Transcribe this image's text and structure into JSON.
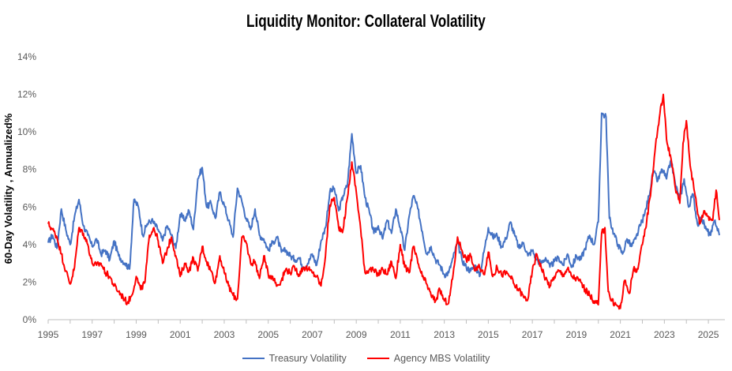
{
  "chart_data": {
    "type": "line",
    "title": "Liquidity Monitor: Collateral Volatility",
    "xlabel": "",
    "ylabel": "60-Day Volatility , Annualized%",
    "xlim": [
      1995,
      2025.75
    ],
    "ylim": [
      0,
      14
    ],
    "y_ticks": [
      "0%",
      "2%",
      "4%",
      "6%",
      "8%",
      "10%",
      "12%",
      "14%"
    ],
    "x_ticks": [
      "1995",
      "1997",
      "1999",
      "2001",
      "2003",
      "2005",
      "2007",
      "2009",
      "2011",
      "2013",
      "2015",
      "2017",
      "2019",
      "2021",
      "2023",
      "2025"
    ],
    "legend_position": "bottom",
    "series": [
      {
        "name": "Treasury Volatility",
        "color": "#4472C4",
        "points": [
          [
            1995.0,
            4.1
          ],
          [
            1995.2,
            4.5
          ],
          [
            1995.4,
            3.8
          ],
          [
            1995.6,
            5.9
          ],
          [
            1995.8,
            4.8
          ],
          [
            1996.0,
            4.0
          ],
          [
            1996.2,
            5.5
          ],
          [
            1996.4,
            6.4
          ],
          [
            1996.6,
            5.0
          ],
          [
            1996.8,
            4.5
          ],
          [
            1997.0,
            3.9
          ],
          [
            1997.2,
            4.3
          ],
          [
            1997.4,
            3.5
          ],
          [
            1997.6,
            3.7
          ],
          [
            1997.8,
            3.2
          ],
          [
            1998.0,
            4.2
          ],
          [
            1998.2,
            3.4
          ],
          [
            1998.5,
            3.0
          ],
          [
            1998.7,
            2.7
          ],
          [
            1998.9,
            6.4
          ],
          [
            1999.1,
            6.0
          ],
          [
            1999.3,
            4.5
          ],
          [
            1999.5,
            5.1
          ],
          [
            1999.7,
            5.3
          ],
          [
            2000.0,
            4.8
          ],
          [
            2000.2,
            4.2
          ],
          [
            2000.4,
            5.0
          ],
          [
            2000.6,
            4.5
          ],
          [
            2000.8,
            3.8
          ],
          [
            2001.0,
            5.6
          ],
          [
            2001.2,
            5.3
          ],
          [
            2001.4,
            5.8
          ],
          [
            2001.6,
            4.8
          ],
          [
            2001.8,
            7.5
          ],
          [
            2002.0,
            8.1
          ],
          [
            2002.2,
            6.0
          ],
          [
            2002.4,
            6.2
          ],
          [
            2002.6,
            5.4
          ],
          [
            2002.8,
            6.8
          ],
          [
            2003.0,
            6.1
          ],
          [
            2003.2,
            5.3
          ],
          [
            2003.4,
            4.4
          ],
          [
            2003.6,
            7.0
          ],
          [
            2003.8,
            6.3
          ],
          [
            2004.0,
            5.4
          ],
          [
            2004.2,
            4.8
          ],
          [
            2004.4,
            5.9
          ],
          [
            2004.6,
            4.5
          ],
          [
            2004.8,
            4.3
          ],
          [
            2005.0,
            3.7
          ],
          [
            2005.2,
            4.1
          ],
          [
            2005.4,
            4.4
          ],
          [
            2005.6,
            3.6
          ],
          [
            2005.8,
            3.7
          ],
          [
            2006.0,
            3.4
          ],
          [
            2006.2,
            3.2
          ],
          [
            2006.4,
            3.3
          ],
          [
            2006.6,
            2.8
          ],
          [
            2006.8,
            3.0
          ],
          [
            2007.0,
            3.5
          ],
          [
            2007.2,
            2.9
          ],
          [
            2007.4,
            4.2
          ],
          [
            2007.6,
            4.9
          ],
          [
            2007.8,
            6.8
          ],
          [
            2008.0,
            7.0
          ],
          [
            2008.2,
            5.8
          ],
          [
            2008.4,
            6.6
          ],
          [
            2008.6,
            7.2
          ],
          [
            2008.8,
            9.9
          ],
          [
            2009.0,
            7.8
          ],
          [
            2009.2,
            8.2
          ],
          [
            2009.4,
            6.5
          ],
          [
            2009.6,
            5.7
          ],
          [
            2009.8,
            4.6
          ],
          [
            2010.0,
            5.0
          ],
          [
            2010.2,
            4.3
          ],
          [
            2010.4,
            5.3
          ],
          [
            2010.6,
            4.6
          ],
          [
            2010.8,
            5.9
          ],
          [
            2011.0,
            4.9
          ],
          [
            2011.2,
            3.7
          ],
          [
            2011.4,
            5.5
          ],
          [
            2011.6,
            6.6
          ],
          [
            2011.8,
            5.9
          ],
          [
            2012.0,
            4.7
          ],
          [
            2012.2,
            3.5
          ],
          [
            2012.4,
            3.9
          ],
          [
            2012.6,
            3.2
          ],
          [
            2012.8,
            2.9
          ],
          [
            2013.0,
            2.4
          ],
          [
            2013.2,
            2.5
          ],
          [
            2013.4,
            3.3
          ],
          [
            2013.6,
            4.1
          ],
          [
            2013.8,
            3.2
          ],
          [
            2014.0,
            2.8
          ],
          [
            2014.2,
            2.6
          ],
          [
            2014.4,
            2.9
          ],
          [
            2014.6,
            2.3
          ],
          [
            2014.8,
            3.6
          ],
          [
            2015.0,
            4.9
          ],
          [
            2015.2,
            4.4
          ],
          [
            2015.4,
            4.5
          ],
          [
            2015.6,
            3.9
          ],
          [
            2015.8,
            4.3
          ],
          [
            2016.0,
            5.2
          ],
          [
            2016.2,
            4.5
          ],
          [
            2016.4,
            3.8
          ],
          [
            2016.6,
            4.1
          ],
          [
            2016.8,
            3.4
          ],
          [
            2017.0,
            3.7
          ],
          [
            2017.2,
            3.2
          ],
          [
            2017.4,
            3.0
          ],
          [
            2017.6,
            3.3
          ],
          [
            2017.8,
            2.8
          ],
          [
            2018.0,
            3.1
          ],
          [
            2018.2,
            3.3
          ],
          [
            2018.4,
            2.9
          ],
          [
            2018.6,
            3.5
          ],
          [
            2018.8,
            2.8
          ],
          [
            2019.0,
            3.4
          ],
          [
            2019.2,
            3.2
          ],
          [
            2019.4,
            3.8
          ],
          [
            2019.6,
            4.5
          ],
          [
            2019.8,
            4.0
          ],
          [
            2020.0,
            5.2
          ],
          [
            2020.15,
            11.0
          ],
          [
            2020.35,
            10.8
          ],
          [
            2020.5,
            5.4
          ],
          [
            2020.7,
            4.6
          ],
          [
            2020.9,
            4.0
          ],
          [
            2021.1,
            3.5
          ],
          [
            2021.3,
            4.3
          ],
          [
            2021.5,
            3.9
          ],
          [
            2021.7,
            4.3
          ],
          [
            2021.9,
            5.0
          ],
          [
            2022.1,
            5.6
          ],
          [
            2022.3,
            6.6
          ],
          [
            2022.5,
            7.9
          ],
          [
            2022.7,
            7.4
          ],
          [
            2022.9,
            8.0
          ],
          [
            2023.1,
            7.5
          ],
          [
            2023.3,
            8.5
          ],
          [
            2023.5,
            7.2
          ],
          [
            2023.7,
            6.4
          ],
          [
            2023.9,
            7.5
          ],
          [
            2024.1,
            6.0
          ],
          [
            2024.3,
            6.7
          ],
          [
            2024.5,
            5.1
          ],
          [
            2024.7,
            5.4
          ],
          [
            2024.9,
            4.8
          ],
          [
            2025.1,
            4.5
          ],
          [
            2025.3,
            5.3
          ],
          [
            2025.5,
            4.5
          ]
        ]
      },
      {
        "name": "Agency MBS Volatility",
        "color": "#FF0000",
        "points": [
          [
            1995.0,
            5.1
          ],
          [
            1995.2,
            4.8
          ],
          [
            1995.4,
            4.4
          ],
          [
            1995.6,
            3.5
          ],
          [
            1995.8,
            2.6
          ],
          [
            1996.0,
            1.9
          ],
          [
            1996.2,
            2.8
          ],
          [
            1996.4,
            4.9
          ],
          [
            1996.6,
            4.6
          ],
          [
            1996.8,
            4.0
          ],
          [
            1997.0,
            3.0
          ],
          [
            1997.2,
            2.9
          ],
          [
            1997.4,
            3.0
          ],
          [
            1997.6,
            2.5
          ],
          [
            1997.8,
            2.3
          ],
          [
            1998.0,
            1.8
          ],
          [
            1998.2,
            1.5
          ],
          [
            1998.4,
            1.2
          ],
          [
            1998.6,
            0.9
          ],
          [
            1998.8,
            1.3
          ],
          [
            1999.0,
            2.3
          ],
          [
            1999.2,
            1.6
          ],
          [
            1999.4,
            2.0
          ],
          [
            1999.6,
            4.5
          ],
          [
            1999.8,
            4.9
          ],
          [
            2000.0,
            4.2
          ],
          [
            2000.2,
            3.0
          ],
          [
            2000.4,
            3.7
          ],
          [
            2000.6,
            4.4
          ],
          [
            2000.8,
            3.4
          ],
          [
            2001.0,
            2.3
          ],
          [
            2001.2,
            3.0
          ],
          [
            2001.4,
            2.6
          ],
          [
            2001.6,
            3.3
          ],
          [
            2001.8,
            2.6
          ],
          [
            2002.0,
            3.9
          ],
          [
            2002.2,
            3.1
          ],
          [
            2002.4,
            2.6
          ],
          [
            2002.6,
            2.0
          ],
          [
            2002.8,
            3.4
          ],
          [
            2003.0,
            2.5
          ],
          [
            2003.2,
            1.8
          ],
          [
            2003.4,
            1.3
          ],
          [
            2003.6,
            1.1
          ],
          [
            2003.8,
            4.4
          ],
          [
            2004.0,
            4.1
          ],
          [
            2004.2,
            3.0
          ],
          [
            2004.4,
            3.1
          ],
          [
            2004.6,
            2.2
          ],
          [
            2004.8,
            3.4
          ],
          [
            2005.0,
            2.4
          ],
          [
            2005.2,
            2.3
          ],
          [
            2005.4,
            1.8
          ],
          [
            2005.6,
            2.1
          ],
          [
            2005.8,
            2.7
          ],
          [
            2006.0,
            2.5
          ],
          [
            2006.2,
            2.8
          ],
          [
            2006.4,
            2.4
          ],
          [
            2006.6,
            2.8
          ],
          [
            2006.8,
            2.7
          ],
          [
            2007.0,
            2.5
          ],
          [
            2007.2,
            2.3
          ],
          [
            2007.4,
            1.8
          ],
          [
            2007.6,
            3.4
          ],
          [
            2007.8,
            6.1
          ],
          [
            2008.0,
            6.5
          ],
          [
            2008.2,
            4.9
          ],
          [
            2008.4,
            4.8
          ],
          [
            2008.6,
            6.5
          ],
          [
            2008.8,
            8.4
          ],
          [
            2009.0,
            6.8
          ],
          [
            2009.2,
            4.8
          ],
          [
            2009.4,
            2.5
          ],
          [
            2009.6,
            2.7
          ],
          [
            2009.8,
            2.6
          ],
          [
            2010.0,
            2.4
          ],
          [
            2010.2,
            2.7
          ],
          [
            2010.4,
            2.4
          ],
          [
            2010.6,
            3.1
          ],
          [
            2010.8,
            2.2
          ],
          [
            2011.0,
            4.0
          ],
          [
            2011.2,
            2.8
          ],
          [
            2011.4,
            2.5
          ],
          [
            2011.6,
            3.9
          ],
          [
            2011.8,
            3.0
          ],
          [
            2012.0,
            2.3
          ],
          [
            2012.2,
            1.9
          ],
          [
            2012.4,
            1.3
          ],
          [
            2012.6,
            1.0
          ],
          [
            2012.8,
            1.6
          ],
          [
            2013.0,
            1.0
          ],
          [
            2013.2,
            0.9
          ],
          [
            2013.4,
            2.4
          ],
          [
            2013.6,
            4.4
          ],
          [
            2013.8,
            3.7
          ],
          [
            2014.0,
            3.2
          ],
          [
            2014.2,
            3.4
          ],
          [
            2014.4,
            2.6
          ],
          [
            2014.6,
            2.8
          ],
          [
            2014.8,
            2.4
          ],
          [
            2015.0,
            3.6
          ],
          [
            2015.2,
            2.3
          ],
          [
            2015.4,
            2.8
          ],
          [
            2015.6,
            2.4
          ],
          [
            2015.8,
            2.5
          ],
          [
            2016.0,
            2.3
          ],
          [
            2016.2,
            1.8
          ],
          [
            2016.4,
            1.6
          ],
          [
            2016.6,
            1.2
          ],
          [
            2016.8,
            1.1
          ],
          [
            2017.0,
            2.6
          ],
          [
            2017.2,
            3.5
          ],
          [
            2017.4,
            2.8
          ],
          [
            2017.6,
            2.2
          ],
          [
            2017.8,
            1.8
          ],
          [
            2018.0,
            2.3
          ],
          [
            2018.2,
            2.6
          ],
          [
            2018.4,
            2.4
          ],
          [
            2018.6,
            2.7
          ],
          [
            2018.8,
            2.3
          ],
          [
            2019.0,
            2.2
          ],
          [
            2019.2,
            2.0
          ],
          [
            2019.4,
            1.6
          ],
          [
            2019.6,
            1.3
          ],
          [
            2019.8,
            1.0
          ],
          [
            2020.0,
            0.8
          ],
          [
            2020.15,
            4.6
          ],
          [
            2020.3,
            4.9
          ],
          [
            2020.45,
            1.5
          ],
          [
            2020.6,
            1.0
          ],
          [
            2020.8,
            0.8
          ],
          [
            2021.0,
            0.6
          ],
          [
            2021.2,
            2.1
          ],
          [
            2021.4,
            1.4
          ],
          [
            2021.6,
            2.7
          ],
          [
            2021.8,
            2.7
          ],
          [
            2022.0,
            4.0
          ],
          [
            2022.2,
            5.3
          ],
          [
            2022.4,
            7.0
          ],
          [
            2022.6,
            9.3
          ],
          [
            2022.8,
            11.0
          ],
          [
            2022.95,
            12.0
          ],
          [
            2023.1,
            9.6
          ],
          [
            2023.3,
            8.6
          ],
          [
            2023.5,
            7.0
          ],
          [
            2023.7,
            6.2
          ],
          [
            2023.85,
            9.4
          ],
          [
            2024.0,
            10.6
          ],
          [
            2024.2,
            8.0
          ],
          [
            2024.4,
            6.6
          ],
          [
            2024.6,
            5.1
          ],
          [
            2024.8,
            5.8
          ],
          [
            2025.0,
            5.5
          ],
          [
            2025.2,
            5.3
          ],
          [
            2025.35,
            6.9
          ],
          [
            2025.5,
            5.3
          ]
        ]
      }
    ]
  }
}
